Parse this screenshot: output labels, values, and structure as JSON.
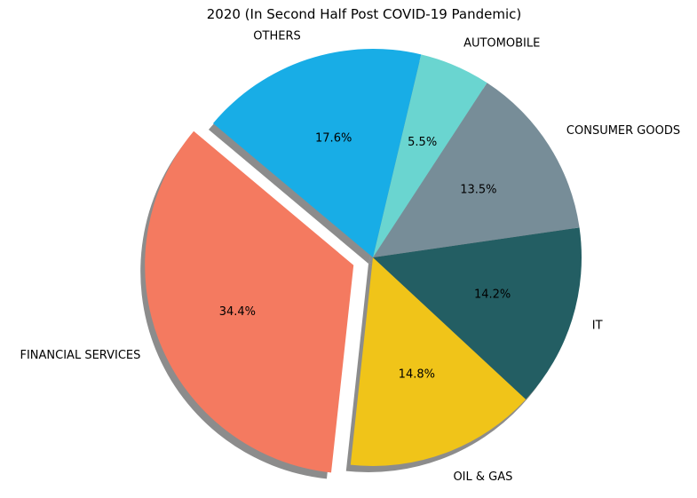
{
  "chart_data": {
    "type": "pie",
    "title": "2020 (In Second Half Post COVID-19 Pandemic)",
    "shadow": true,
    "start_angle_deg": 140,
    "direction": "counterclockwise",
    "slices": [
      {
        "label": "FINANCIAL SERVICES",
        "value": 34.4,
        "pct_label": "34.4%",
        "color": "#f47a60",
        "explode": 0.1
      },
      {
        "label": "OIL & GAS",
        "value": 14.8,
        "pct_label": "14.8%",
        "color": "#f0c419",
        "explode": 0
      },
      {
        "label": "IT",
        "value": 14.2,
        "pct_label": "14.2%",
        "color": "#235e63",
        "explode": 0
      },
      {
        "label": "CONSUMER GOODS",
        "value": 13.5,
        "pct_label": "13.5%",
        "color": "#778d98",
        "explode": 0
      },
      {
        "label": "AUTOMOBILE",
        "value": 5.5,
        "pct_label": "5.5%",
        "color": "#6ad5d0",
        "explode": 0
      },
      {
        "label": "OTHERS",
        "value": 17.6,
        "pct_label": "17.6%",
        "color": "#18ade6",
        "explode": 0
      }
    ]
  }
}
